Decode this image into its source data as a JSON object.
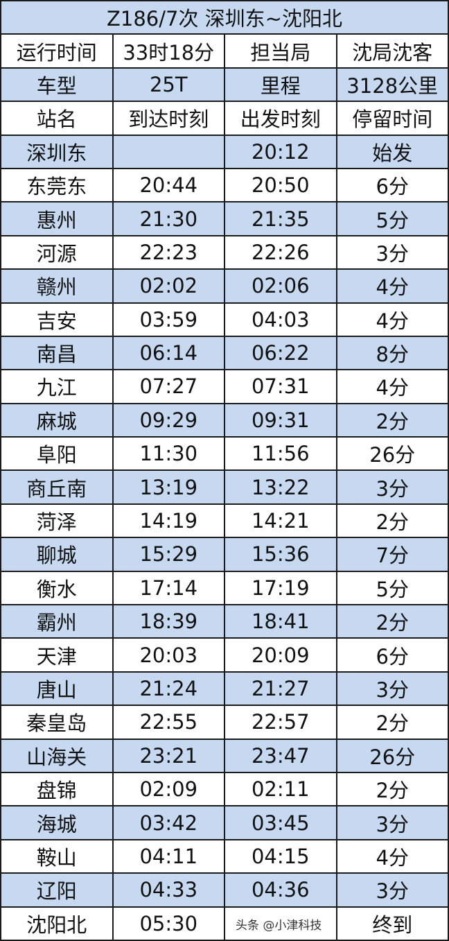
{
  "title": "Z186/7次 深圳东~沈阳北",
  "info": [
    [
      "运行时间",
      "33时18分",
      "担当局",
      "沈局沈客"
    ],
    [
      "车型",
      "25T",
      "里程",
      "3128公里"
    ]
  ],
  "headers": [
    "站名",
    "到达时刻",
    "出发时刻",
    "停留时间"
  ],
  "rows": [
    [
      "深圳东",
      "",
      "20:12",
      "始发"
    ],
    [
      "东莞东",
      "20:44",
      "20:50",
      "6分"
    ],
    [
      "惠州",
      "21:30",
      "21:35",
      "5分"
    ],
    [
      "河源",
      "22:23",
      "22:26",
      "3分"
    ],
    [
      "赣州",
      "02:02",
      "02:06",
      "4分"
    ],
    [
      "吉安",
      "03:59",
      "04:03",
      "4分"
    ],
    [
      "南昌",
      "06:14",
      "06:22",
      "8分"
    ],
    [
      "九江",
      "07:27",
      "07:31",
      "4分"
    ],
    [
      "麻城",
      "09:29",
      "09:31",
      "2分"
    ],
    [
      "阜阳",
      "11:30",
      "11:56",
      "26分"
    ],
    [
      "商丘南",
      "13:19",
      "13:22",
      "3分"
    ],
    [
      "菏泽",
      "14:19",
      "14:21",
      "2分"
    ],
    [
      "聊城",
      "15:29",
      "15:36",
      "7分"
    ],
    [
      "衡水",
      "17:14",
      "17:19",
      "5分"
    ],
    [
      "霸州",
      "18:39",
      "18:41",
      "2分"
    ],
    [
      "天津",
      "20:03",
      "20:09",
      "6分"
    ],
    [
      "唐山",
      "21:24",
      "21:27",
      "3分"
    ],
    [
      "秦皇岛",
      "22:55",
      "22:57",
      "2分"
    ],
    [
      "山海关",
      "23:21",
      "23:47",
      "26分"
    ],
    [
      "盘锦",
      "02:09",
      "02:11",
      "2分"
    ],
    [
      "海城",
      "03:42",
      "03:45",
      "3分"
    ],
    [
      "鞍山",
      "04:11",
      "04:15",
      "4分"
    ],
    [
      "辽阳",
      "04:33",
      "04:36",
      "3分"
    ],
    [
      "沈阳北",
      "05:30",
      "",
      "终到"
    ]
  ],
  "watermark": "头条 @小津科技",
  "colors": {
    "row_alt": "#c6d9f1",
    "border": "#1a1a1a"
  }
}
